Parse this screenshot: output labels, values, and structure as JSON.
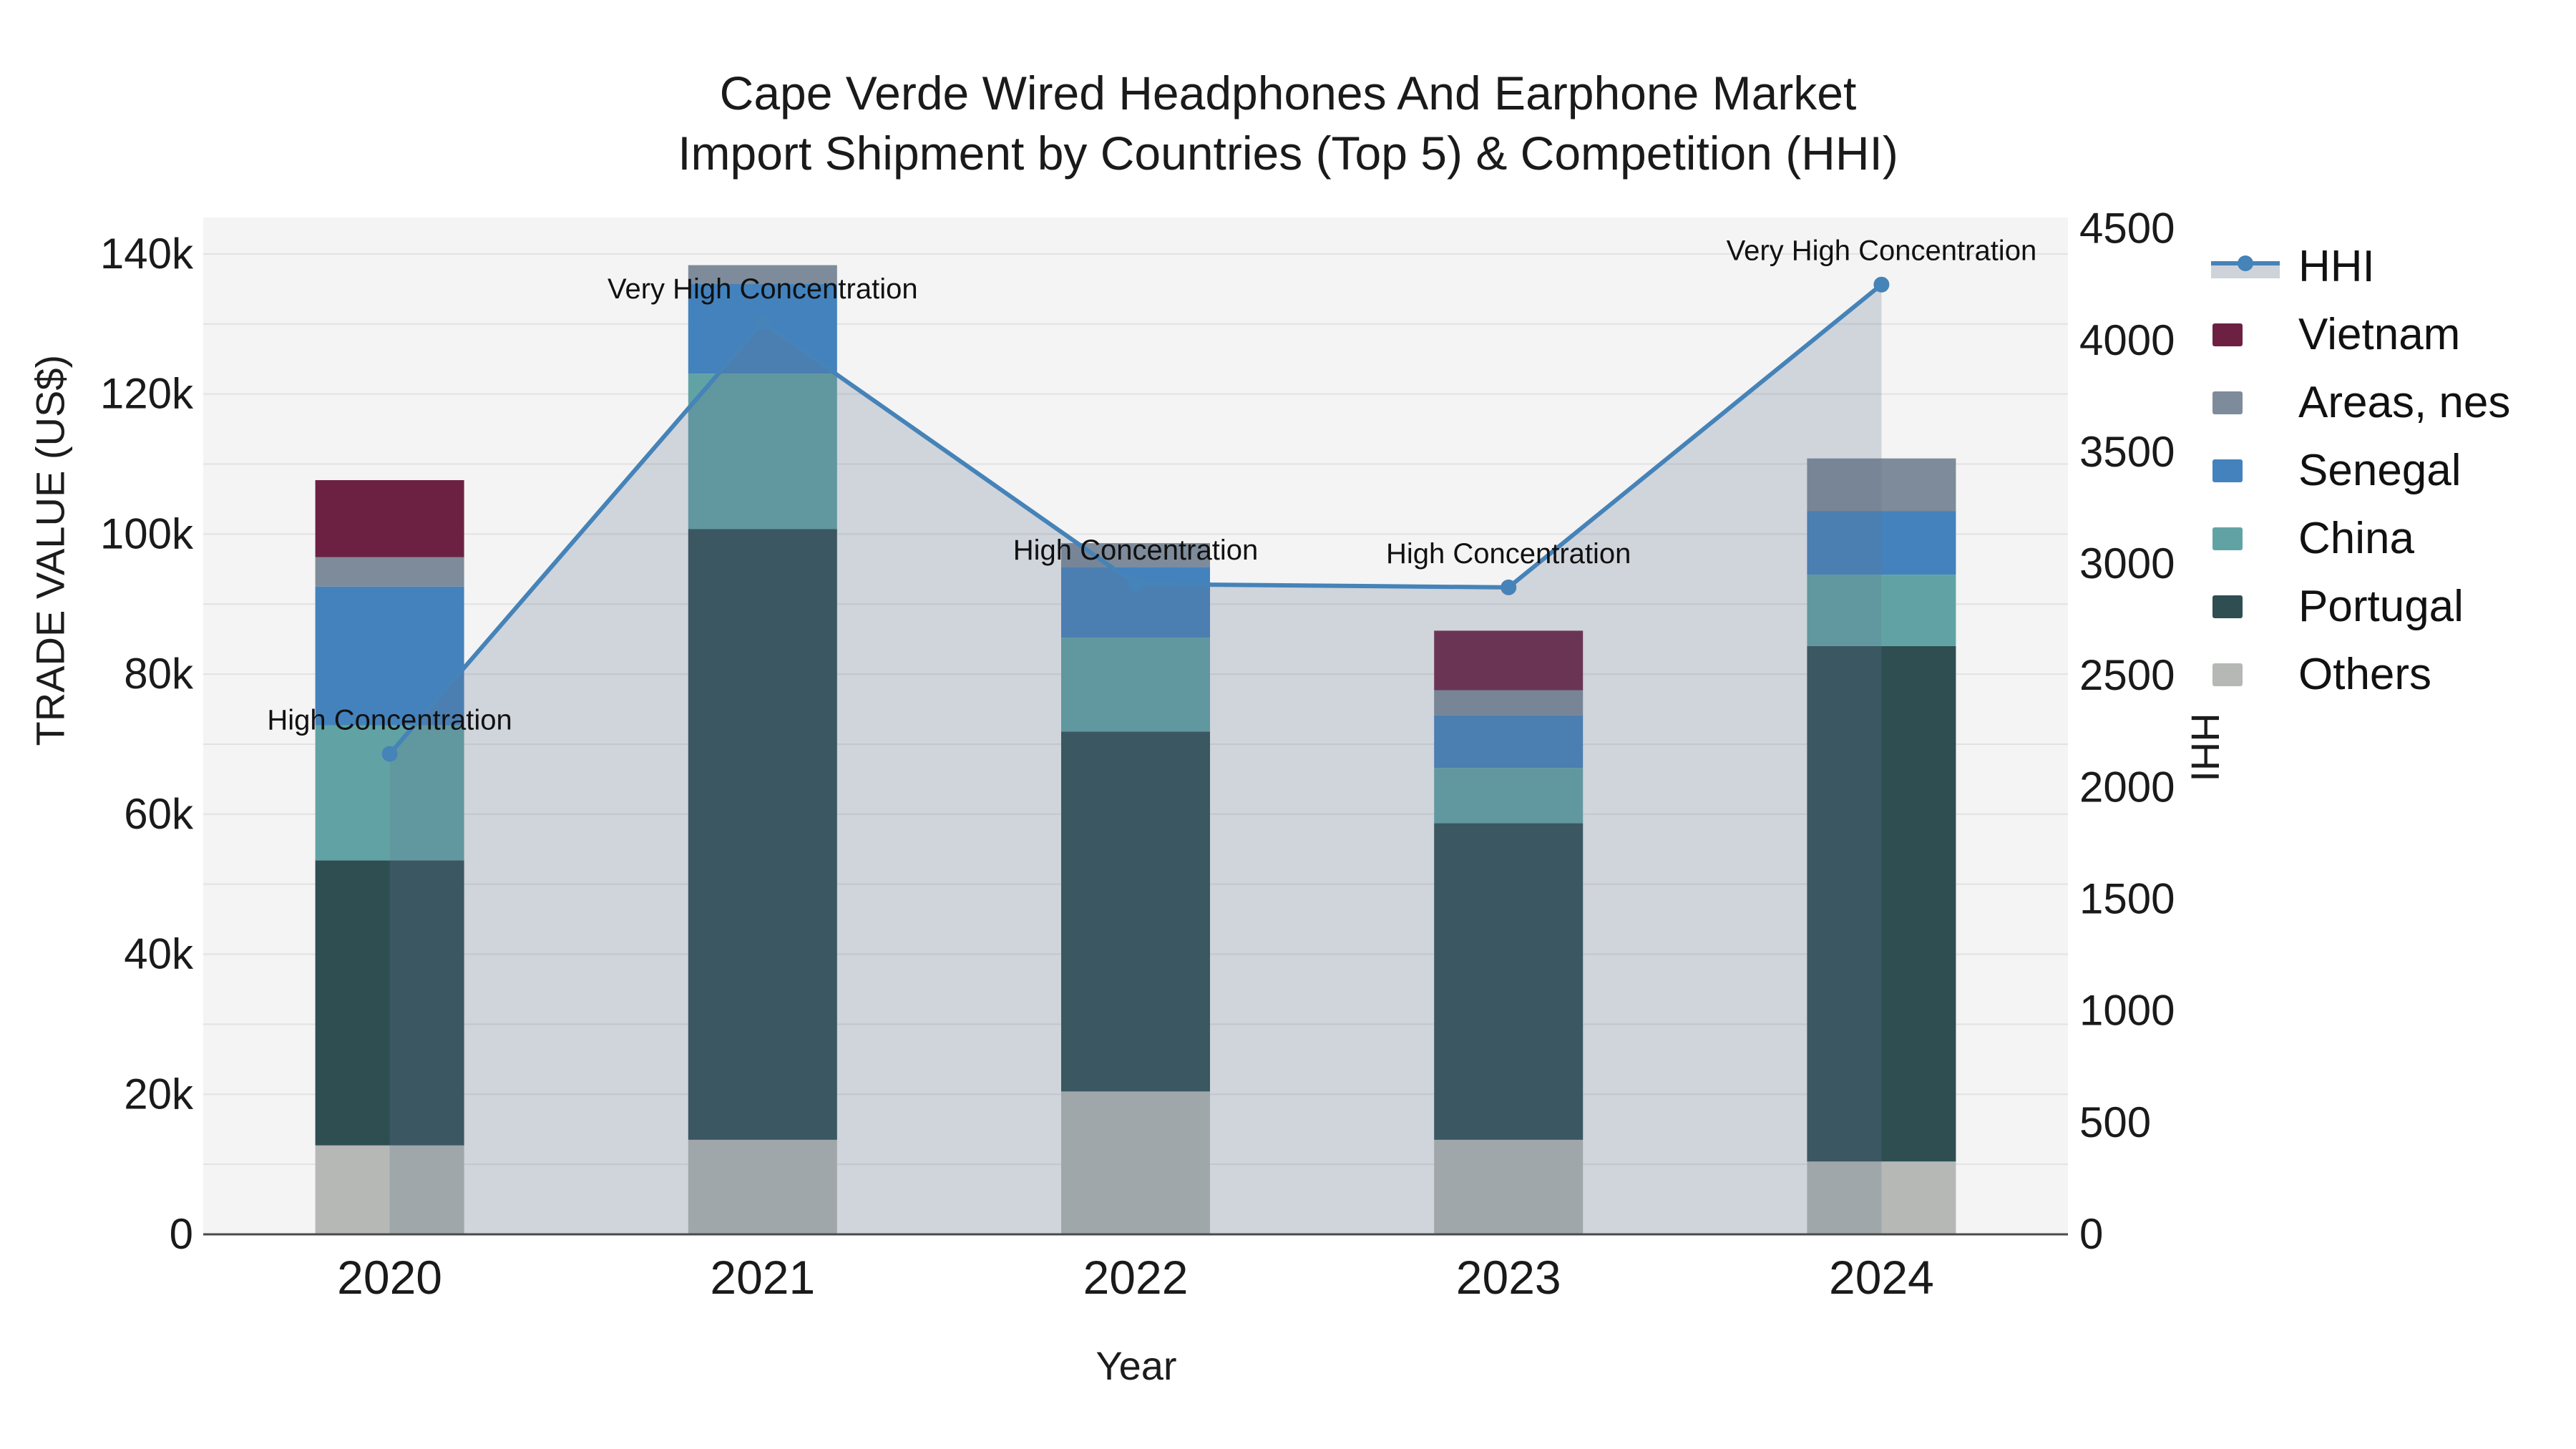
{
  "title": {
    "line1": "Cape Verde Wired Headphones And Earphone Market",
    "line2": "Import Shipment by Countries (Top 5) & Competition (HHI)"
  },
  "axis_titles": {
    "left": "TRADE VALUE (US$)",
    "bottom": "Year",
    "right": "HHI"
  },
  "legend": {
    "items": [
      {
        "label": "HHI",
        "type": "line",
        "color": "#4583b8",
        "band": "#ced2d9"
      },
      {
        "label": "Vietnam",
        "type": "square",
        "color": "#6d2142"
      },
      {
        "label": "Areas, nes",
        "type": "square",
        "color": "#7e8b9a"
      },
      {
        "label": "Senegal",
        "type": "square",
        "color": "#4382bd"
      },
      {
        "label": "China",
        "type": "square",
        "color": "#61a3a5"
      },
      {
        "label": "Portugal",
        "type": "square",
        "color": "#2e4e52"
      },
      {
        "label": "Others",
        "type": "square",
        "color": "#b5b8b5"
      }
    ]
  },
  "chart_data": {
    "type": "bar",
    "combo": "stacked-bar+line",
    "title": "Cape Verde Wired Headphones And Earphone Market Import Shipment by Countries (Top 5) & Competition (HHI)",
    "xlabel": "Year",
    "categories": [
      "2020",
      "2021",
      "2022",
      "2023",
      "2024"
    ],
    "series": [
      {
        "name": "Others",
        "color": "#b5b8b5",
        "values": [
          12700,
          13500,
          20400,
          13500,
          10400
        ]
      },
      {
        "name": "Portugal",
        "color": "#2e4e52",
        "values": [
          40700,
          87200,
          51400,
          45200,
          73600
        ]
      },
      {
        "name": "China",
        "color": "#61a3a5",
        "values": [
          19300,
          22200,
          13400,
          7900,
          10200
        ]
      },
      {
        "name": "Senegal",
        "color": "#4382bd",
        "values": [
          19800,
          12800,
          10100,
          7500,
          9100
        ]
      },
      {
        "name": "Areas, nes",
        "color": "#7e8b9a",
        "values": [
          4200,
          2700,
          3400,
          3600,
          7500
        ]
      },
      {
        "name": "Vietnam",
        "color": "#6d2142",
        "values": [
          11000,
          0,
          0,
          8500,
          0
        ]
      }
    ],
    "bar_totals": [
      107700,
      138400,
      98700,
      86200,
      110800
    ],
    "line_series": {
      "name": "HHI",
      "color": "#4583b8",
      "fill": "rgba(100,116,142,0.25)",
      "marker_radius": 11,
      "yaxis": "right",
      "values": [
        2150,
        4080,
        2910,
        2895,
        4250
      ]
    },
    "annotations": [
      {
        "x": "2020",
        "text": "High Concentration"
      },
      {
        "x": "2021",
        "text": "Very High Concentration"
      },
      {
        "x": "2022",
        "text": "High Concentration"
      },
      {
        "x": "2023",
        "text": "High Concentration"
      },
      {
        "x": "2024",
        "text": "Very High Concentration"
      }
    ],
    "left_axis": {
      "label": "TRADE VALUE (US$)",
      "tick_labels": [
        "0",
        "20k",
        "40k",
        "60k",
        "80k",
        "100k",
        "120k",
        "140k"
      ],
      "tick_values": [
        0,
        20000,
        40000,
        60000,
        80000,
        100000,
        120000,
        140000
      ],
      "range": [
        0,
        145200
      ],
      "grid_step": 10000
    },
    "right_axis": {
      "label": "HHI",
      "tick_labels": [
        "0",
        "500",
        "1000",
        "1500",
        "2000",
        "2500",
        "3000",
        "3500",
        "4000",
        "4500"
      ],
      "tick_values": [
        0,
        500,
        1000,
        1500,
        2000,
        2500,
        3000,
        3500,
        4000,
        4500
      ],
      "range": [
        0,
        4550
      ]
    },
    "legend_position": "right",
    "grid": true,
    "plot_bg": "#f4f4f4",
    "grid_color": "#e2e2e2",
    "axis_line_color": "#4a4a4a",
    "tick_font_color": "#1a1a1a"
  }
}
